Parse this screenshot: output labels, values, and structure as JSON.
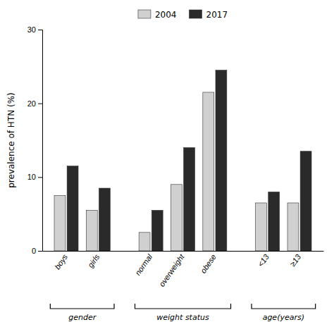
{
  "chart_data": {
    "type": "bar",
    "categories": [
      "boys",
      "girls",
      "normal",
      "overweight",
      "obese",
      "<13",
      "≥13"
    ],
    "series": [
      {
        "name": "2004",
        "color": "#d0d0d0",
        "values": [
          7.5,
          5.5,
          2.5,
          9.0,
          21.5,
          6.5,
          6.5
        ]
      },
      {
        "name": "2017",
        "color": "#2a2a2a",
        "values": [
          11.5,
          8.5,
          5.5,
          14.0,
          24.5,
          8.0,
          13.5
        ]
      }
    ],
    "y_label": "prevalence of HTN (%)",
    "ylim": [
      0,
      30
    ],
    "yticks": [
      0,
      10,
      20,
      30
    ],
    "groups": [
      {
        "label": "gender",
        "categories": [
          "boys",
          "girls"
        ]
      },
      {
        "label": "weight status",
        "categories": [
          "normal",
          "overweight",
          "obese"
        ]
      },
      {
        "label": "age(years)",
        "categories": [
          "<13",
          "≥13"
        ]
      }
    ],
    "legend": "top"
  }
}
